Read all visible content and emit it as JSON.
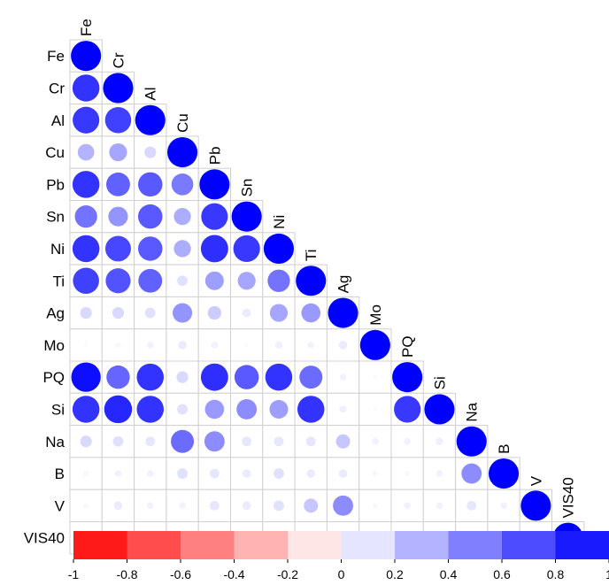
{
  "chart_data": {
    "type": "heatmap",
    "title": "",
    "variables": [
      "Fe",
      "Cr",
      "Al",
      "Cu",
      "Pb",
      "Sn",
      "Ni",
      "Ti",
      "Ag",
      "Mo",
      "PQ",
      "Si",
      "Na",
      "B",
      "V",
      "VIS40"
    ],
    "matrix": [
      [
        1.0
      ],
      [
        0.8,
        1.0
      ],
      [
        0.78,
        0.75,
        1.0
      ],
      [
        0.3,
        0.35,
        0.15,
        1.0
      ],
      [
        0.8,
        0.62,
        0.65,
        0.52,
        1.0
      ],
      [
        0.55,
        0.42,
        0.65,
        0.32,
        0.78,
        1.0
      ],
      [
        0.8,
        0.72,
        0.65,
        0.32,
        0.82,
        0.78,
        1.0
      ],
      [
        0.75,
        0.68,
        0.62,
        0.12,
        0.38,
        0.35,
        0.55,
        1.0
      ],
      [
        0.15,
        0.15,
        0.12,
        0.42,
        0.2,
        0.08,
        0.35,
        0.4,
        1.0
      ],
      [
        0.02,
        0.03,
        0.05,
        0.08,
        0.05,
        0.02,
        0.06,
        0.05,
        0.08,
        1.0
      ],
      [
        0.95,
        0.6,
        0.8,
        0.15,
        0.82,
        0.65,
        0.8,
        0.58,
        0.05,
        0.02,
        1.0
      ],
      [
        0.8,
        0.85,
        0.8,
        0.12,
        0.4,
        0.45,
        0.38,
        0.8,
        0.06,
        0.02,
        0.78,
        1.0
      ],
      [
        0.15,
        0.12,
        0.1,
        0.58,
        0.45,
        0.1,
        0.1,
        0.1,
        0.22,
        0.05,
        0.05,
        0.06,
        1.0
      ],
      [
        0.03,
        0.05,
        0.05,
        0.12,
        0.1,
        0.08,
        0.12,
        0.08,
        0.08,
        0.03,
        0.03,
        0.05,
        0.45,
        1.0
      ],
      [
        0.03,
        0.08,
        0.05,
        0.05,
        0.1,
        0.08,
        0.12,
        0.22,
        0.45,
        0.03,
        0.05,
        0.05,
        0.1,
        0.05,
        1.0
      ],
      [
        -0.05,
        -0.08,
        -0.1,
        0.03,
        0.05,
        0.03,
        0.03,
        -0.08,
        -0.1,
        0.03,
        0.05,
        0.05,
        0.05,
        0.08,
        -0.1,
        1.0
      ]
    ],
    "colorbar": {
      "range": [
        -1,
        1
      ],
      "ticks": [
        "-1",
        "-0.8",
        "-0.6",
        "-0.4",
        "-0.2",
        "0",
        "0.2",
        "0.4",
        "0.6",
        "0.8",
        "1"
      ]
    },
    "colors": {
      "negative": "#ff0000",
      "neutral": "#ffffff",
      "positive": "#0000ff",
      "grid": "#d0d0d0"
    }
  }
}
